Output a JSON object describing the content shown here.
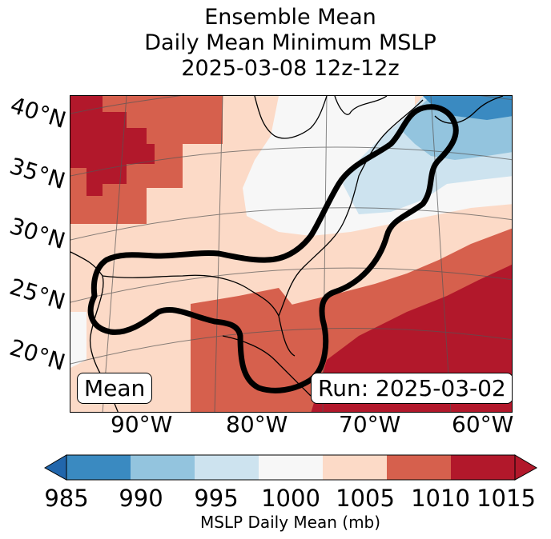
{
  "title": {
    "line1": "Ensemble Mean",
    "line2": "Daily Mean Minimum MSLP",
    "line3": "2025-03-08 12z-12z"
  },
  "map": {
    "lat_labels": [
      "40°N",
      "35°N",
      "30°N",
      "25°N",
      "20°N"
    ],
    "lon_labels": [
      "90°W",
      "80°W",
      "70°W",
      "60°W"
    ],
    "mean_box": "Mean",
    "run_box": "Run: 2025-03-02"
  },
  "colorbar": {
    "ticks": [
      "985",
      "990",
      "995",
      "1000",
      "1005",
      "1010",
      "1015"
    ],
    "label": "MSLP Daily Mean (mb)",
    "colors": [
      "#3a8ac1",
      "#93c4de",
      "#cde3ef",
      "#f7f7f7",
      "#fcdac7",
      "#d6604d",
      "#b2182b"
    ],
    "under_color": "#2166ac",
    "over_color": "#b2182b"
  }
}
